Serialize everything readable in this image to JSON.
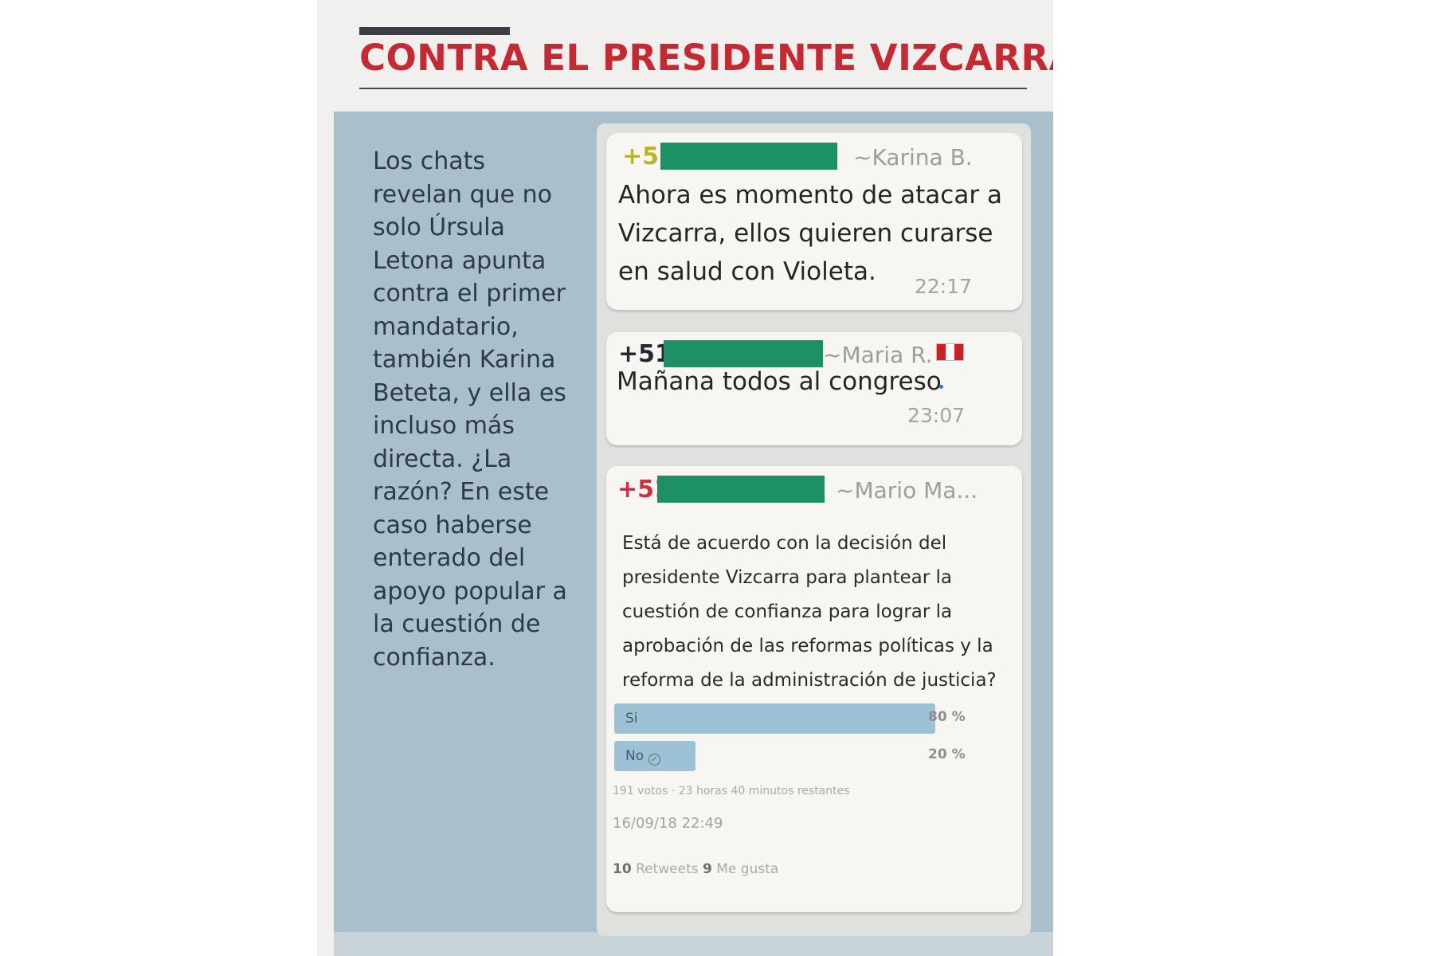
{
  "headline": "CONTRA EL PRESIDENTE VIZCARRA",
  "body_text": "Los chats revelan que no solo Úrsula Letona apunta contra el primer mandatario, también Karina Beteta, y ella es incluso más directa. ¿La razón? En este caso haberse enterado del apoyo popular a la cuestión de confianza.",
  "colors": {
    "headline": "#c42a33",
    "box": "#a9bfcc",
    "redaction": "#1d9066"
  },
  "chat": {
    "messages": [
      {
        "phone": "+51",
        "phone_color": "#b9b626",
        "sender": "~Karina B.",
        "text": "Ahora es momento de atacar a Vizcarra, ellos quieren curarse en salud con Violeta.",
        "time": "22:17"
      },
      {
        "phone": "+51",
        "phone_color": "#1f2a33",
        "sender": "~Maria R.",
        "text": "Mañana todos al congreso",
        "time": "23:07",
        "icon": "peru-flag-icon"
      },
      {
        "phone": "+51",
        "phone_color": "#d02f3f",
        "sender": "~Mario Ma..."
      }
    ],
    "poll": {
      "question": "Está de acuerdo con la decisión del presidente Vizcarra para plantear la cuestión de confianza para lograr la aprobación de las reformas políticas y la reforma de la administración de justicia?",
      "options": [
        {
          "label": "Si",
          "percent_text": "80 %",
          "fraction": 0.8
        },
        {
          "label": "No",
          "percent_text": "20 %",
          "fraction": 0.2,
          "icon": "check-circle-icon"
        }
      ],
      "votes_line": "191 votos · 23 horas 40 minutos restantes",
      "date": "16/09/18 22:49",
      "retweets_count": "10",
      "retweets_label": "Retweets",
      "likes_count": "9",
      "likes_label": "Me gusta"
    }
  }
}
